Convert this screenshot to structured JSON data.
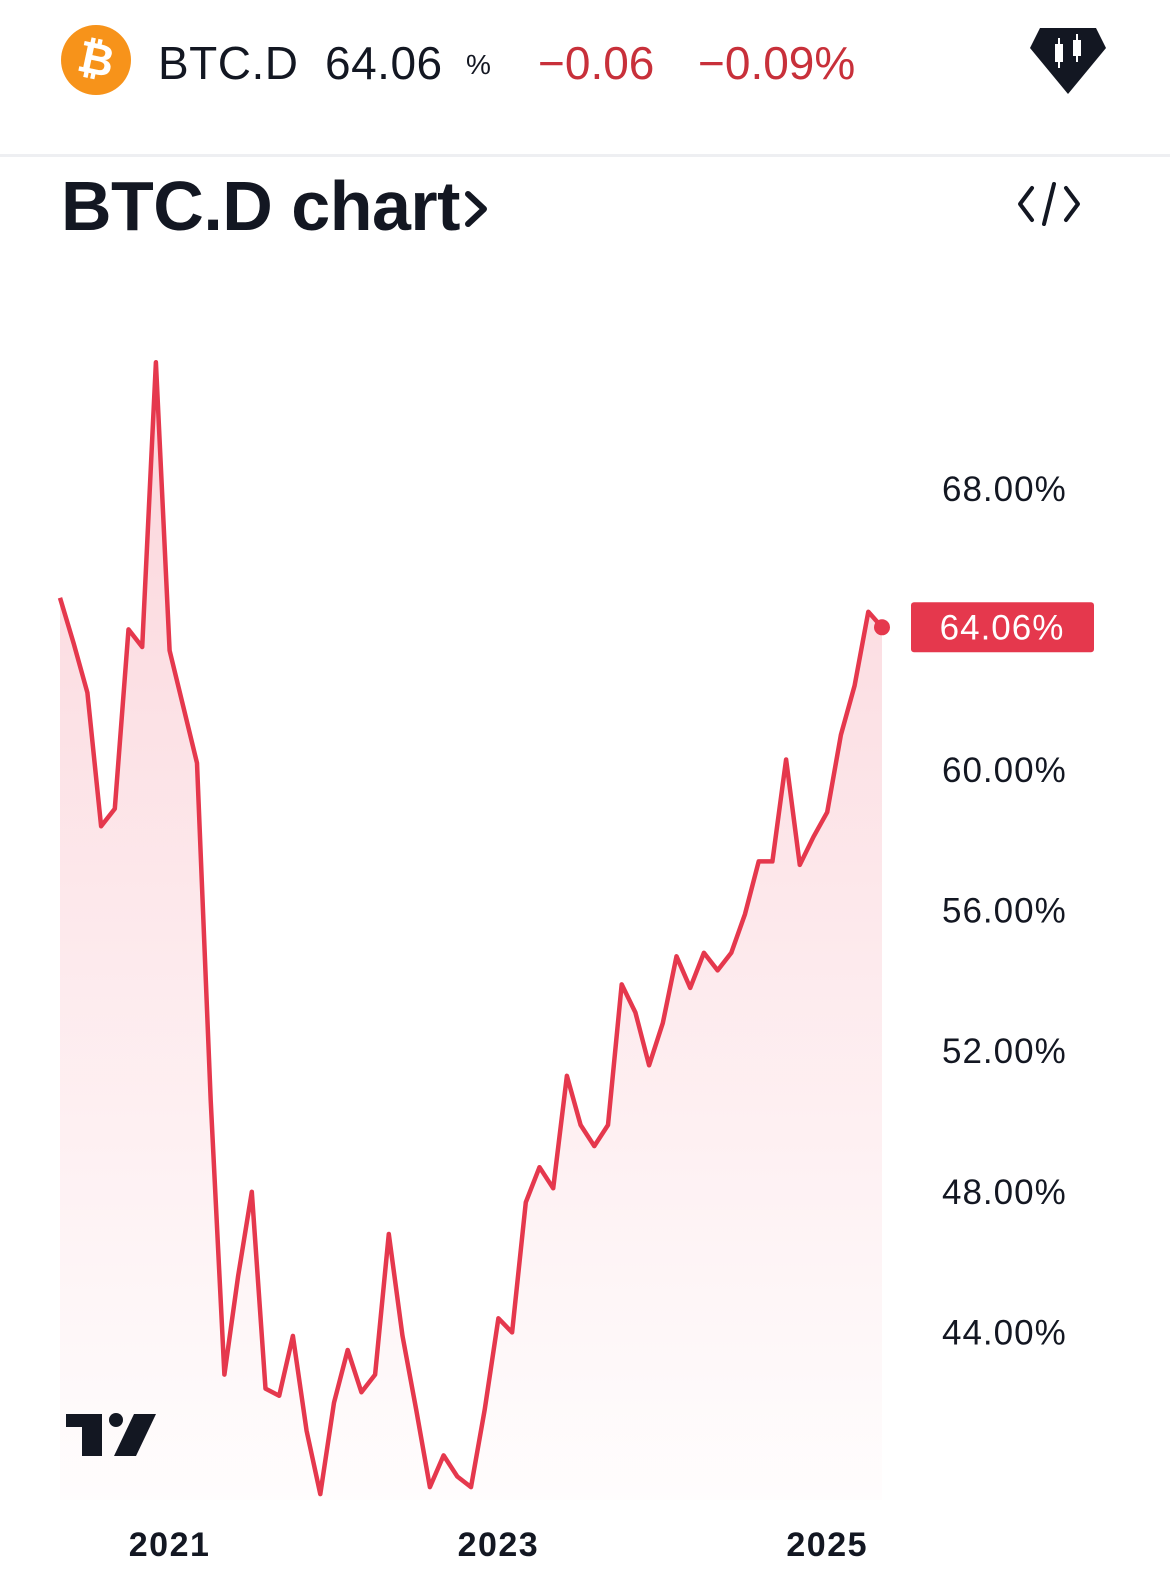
{
  "header": {
    "coin_icon": "bitcoin-icon",
    "symbol": "BTC.D",
    "price": "64.06",
    "price_unit": "%",
    "change": "−0.06",
    "change_percent": "−0.09%",
    "brand_icon": "tradingview-candles-icon",
    "colors": {
      "down": "#c8303a",
      "coin": "#f7931a"
    }
  },
  "section": {
    "title": "BTC.D chart",
    "chevron_icon": "chevron-right-icon",
    "embed_icon": "code-embed-icon"
  },
  "chart_data": {
    "type": "area",
    "title": "",
    "xlabel": "",
    "ylabel": "",
    "x_tick_labels": [
      "2021",
      "2023",
      "2025"
    ],
    "y_tick_labels": [
      "68.00%",
      "60.00%",
      "56.00%",
      "52.00%",
      "48.00%",
      "44.00%"
    ],
    "y_tick_values": [
      68,
      60,
      56,
      52,
      48,
      44
    ],
    "ylim": [
      40.0,
      73.0
    ],
    "grid": false,
    "legend": "none",
    "last_value_label": "64.06%",
    "line_color": "#e5384d",
    "fill_color": "#fbd3d9",
    "badge_color": "#e5384d",
    "watermark_icon": "tradingview-logo-icon",
    "series": [
      {
        "x": [
          "2020-05",
          "2020-06",
          "2020-07",
          "2020-08",
          "2020-09",
          "2020-10",
          "2020-11",
          "2020-12",
          "2021-01",
          "2021-02",
          "2021-03",
          "2021-04",
          "2021-05",
          "2021-06",
          "2021-07",
          "2021-08",
          "2021-09",
          "2021-10",
          "2021-11",
          "2021-12",
          "2022-01",
          "2022-02",
          "2022-03",
          "2022-04",
          "2022-05",
          "2022-06",
          "2022-07",
          "2022-08",
          "2022-09",
          "2022-10",
          "2022-11",
          "2022-12",
          "2023-01",
          "2023-02",
          "2023-03",
          "2023-04",
          "2023-05",
          "2023-06",
          "2023-07",
          "2023-08",
          "2023-09",
          "2023-10",
          "2023-11",
          "2023-12",
          "2024-01",
          "2024-02",
          "2024-03",
          "2024-04",
          "2024-05",
          "2024-06",
          "2024-07",
          "2024-08",
          "2024-09",
          "2024-10",
          "2024-11",
          "2024-12",
          "2025-01",
          "2025-02",
          "2025-03",
          "2025-04",
          "2025-05"
        ],
        "values": [
          64.9,
          63.6,
          62.2,
          58.4,
          58.9,
          64.0,
          63.5,
          71.6,
          63.4,
          61.8,
          60.2,
          50.6,
          42.8,
          45.6,
          48.0,
          42.4,
          42.2,
          43.9,
          41.2,
          39.4,
          42.0,
          43.5,
          42.3,
          42.8,
          46.8,
          43.9,
          41.8,
          39.6,
          40.5,
          39.9,
          39.6,
          41.8,
          44.4,
          44.0,
          47.7,
          48.7,
          48.1,
          51.3,
          49.9,
          49.3,
          49.9,
          53.9,
          53.1,
          51.6,
          52.8,
          54.7,
          53.8,
          54.8,
          54.3,
          54.8,
          55.9,
          57.4,
          57.4,
          60.3,
          57.3,
          58.1,
          58.8,
          61.0,
          62.4,
          64.5,
          64.06
        ]
      }
    ]
  }
}
